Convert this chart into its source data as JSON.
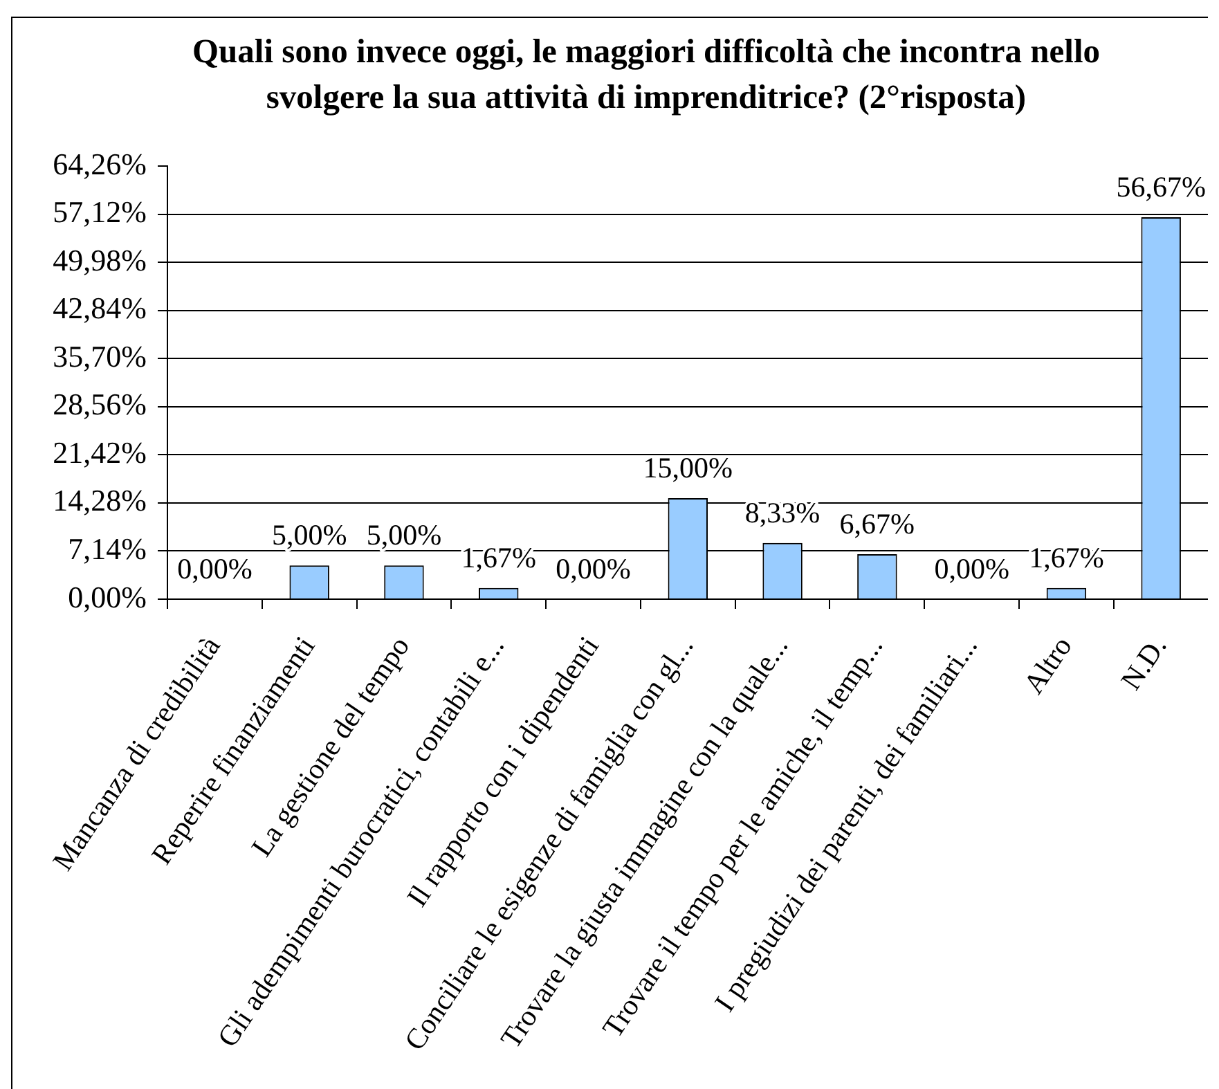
{
  "chart_data": {
    "type": "bar",
    "title": "Quali sono invece oggi, le maggiori difficoltà che incontra nello svolgere la sua attività di imprenditrice? (2°risposta)",
    "categories": [
      "Mancanza di credibilità",
      "Reperire finanziamenti",
      "La gestione del tempo",
      "Gli adempimenti burocratici, contabili e...",
      "Il rapporto con i dipendenti",
      "Conciliare le esigenze di famiglia con gl...",
      "Trovare la giusta immagine con la quale...",
      "Trovare il tempo per le amiche, il temp...",
      "I pregiudizi dei parenti, dei familiari...",
      "Altro",
      "N.D."
    ],
    "values": [
      0,
      5,
      5,
      1.67,
      0,
      15,
      8.33,
      6.67,
      0,
      1.67,
      56.67
    ],
    "value_labels": [
      "0,00%",
      "5,00%",
      "5,00%",
      "1,67%",
      "0,00%",
      "15,00%",
      "8,33%",
      "6,67%",
      "0,00%",
      "1,67%",
      "56,67%"
    ],
    "color": "#99ccff",
    "ylim": [
      0,
      64.26
    ],
    "yticks": [
      {
        "value": 0,
        "label": "0,00%"
      },
      {
        "value": 7.14,
        "label": "7,14%"
      },
      {
        "value": 14.28,
        "label": "14,28%"
      },
      {
        "value": 21.42,
        "label": "21,42%"
      },
      {
        "value": 28.56,
        "label": "28,56%"
      },
      {
        "value": 35.7,
        "label": "35,70%"
      },
      {
        "value": 42.84,
        "label": "42,84%"
      },
      {
        "value": 49.98,
        "label": "49,98%"
      },
      {
        "value": 57.12,
        "label": "57,12%"
      },
      {
        "value": 64.26,
        "label": "64,26%"
      }
    ],
    "grid": "y"
  }
}
